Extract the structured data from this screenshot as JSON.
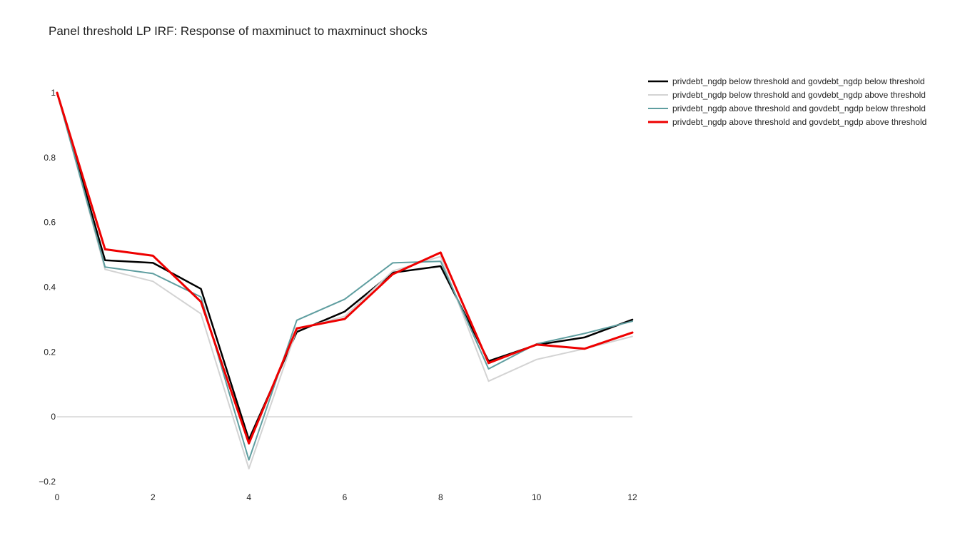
{
  "chart_data": {
    "type": "line",
    "title": "Panel threshold LP IRF: Response of maxminuct to maxminuct shocks",
    "xlabel": "",
    "ylabel": "",
    "x": [
      0,
      1,
      2,
      3,
      4,
      5,
      6,
      7,
      8,
      9,
      10,
      11,
      12
    ],
    "xlim": [
      0,
      12
    ],
    "ylim": [
      -0.2,
      1.0
    ],
    "x_ticks": [
      0,
      2,
      4,
      6,
      8,
      10,
      12
    ],
    "x_tick_labels": [
      "0",
      "2",
      "4",
      "6",
      "8",
      "10",
      "12"
    ],
    "y_ticks": [
      -0.2,
      0,
      0.2,
      0.4,
      0.6,
      0.8,
      1
    ],
    "y_tick_labels": [
      "−0.2",
      "0",
      "0.2",
      "0.4",
      "0.6",
      "0.8",
      "1"
    ],
    "grid": false,
    "zero_line": true,
    "legend_position": "top-right",
    "series": [
      {
        "name": "privdebt_ngdp below threshold and govdebt_ngdp below threshold",
        "color": "#000000",
        "width": 2.5,
        "values": [
          1.0,
          0.483,
          0.475,
          0.395,
          -0.07,
          0.262,
          0.325,
          0.445,
          0.465,
          0.172,
          0.222,
          0.245,
          0.3
        ]
      },
      {
        "name": "privdebt_ngdp below threshold and govdebt_ngdp above threshold",
        "color": "#d3d3d3",
        "width": 2,
        "values": [
          1.0,
          0.455,
          0.418,
          0.318,
          -0.16,
          0.27,
          0.31,
          0.45,
          0.495,
          0.11,
          0.177,
          0.21,
          0.248
        ]
      },
      {
        "name": "privdebt_ngdp above threshold and govdebt_ngdp below threshold",
        "color": "#5f9ea0",
        "width": 2,
        "values": [
          1.0,
          0.462,
          0.442,
          0.37,
          -0.133,
          0.298,
          0.363,
          0.475,
          0.48,
          0.148,
          0.225,
          0.257,
          0.295
        ]
      },
      {
        "name": "privdebt_ngdp above threshold and govdebt_ngdp above threshold",
        "color": "#ee0000",
        "width": 3,
        "values": [
          1.0,
          0.517,
          0.497,
          0.355,
          -0.082,
          0.273,
          0.302,
          0.44,
          0.507,
          0.166,
          0.223,
          0.21,
          0.26
        ]
      }
    ]
  }
}
